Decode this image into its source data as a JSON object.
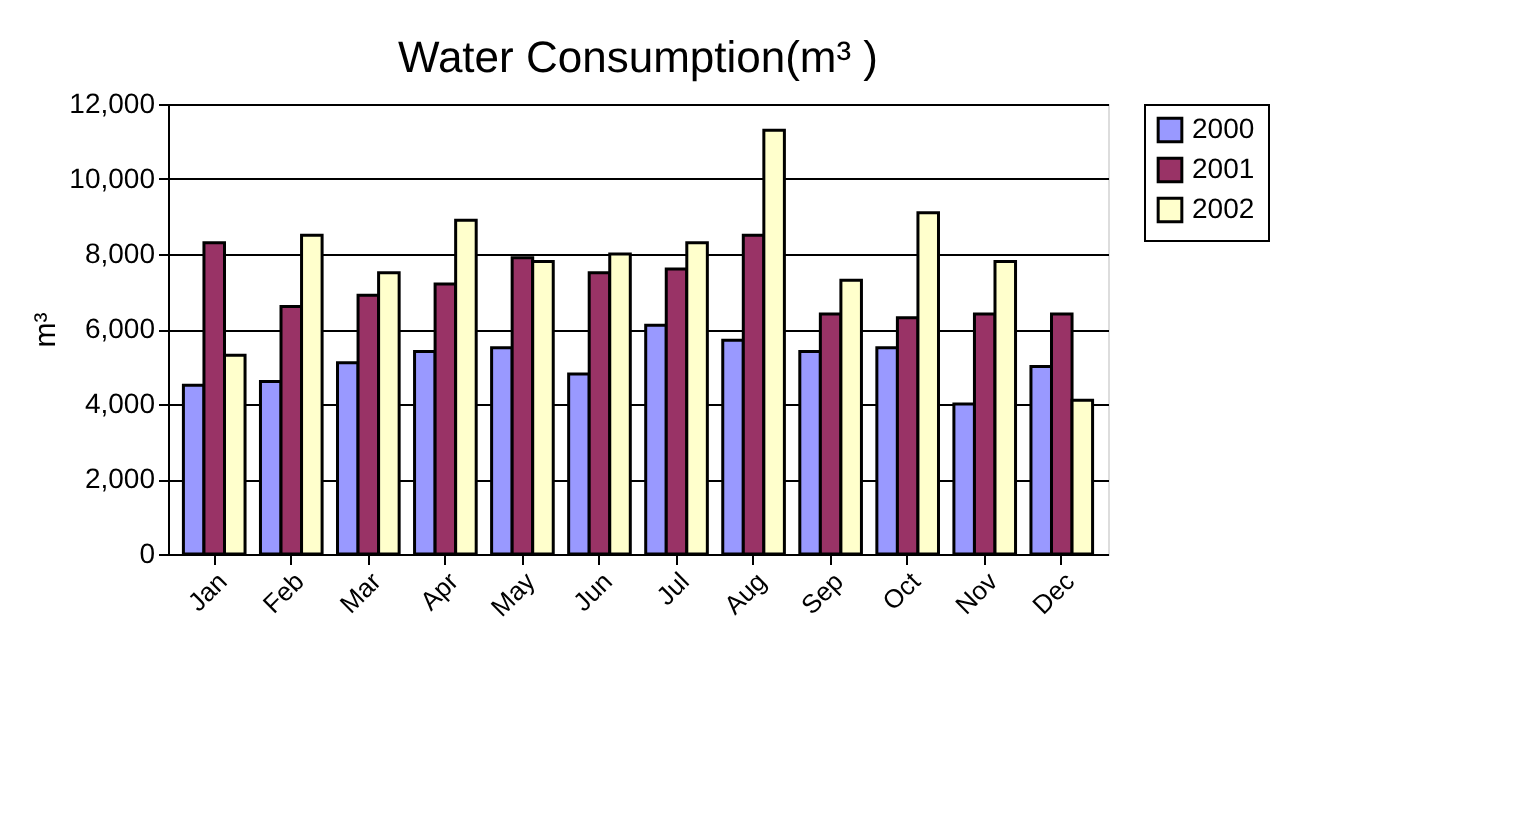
{
  "chart_data": {
    "type": "bar",
    "title": "Water Consumption(m³ )",
    "ylabel": "m³",
    "categories": [
      "Jan",
      "Feb",
      "Mar",
      "Apr",
      "May",
      "Jun",
      "Jul",
      "Aug",
      "Sep",
      "Oct",
      "Nov",
      "Dec"
    ],
    "series": [
      {
        "name": "2000",
        "color": "#9999ff",
        "values": [
          4500,
          4600,
          5100,
          5400,
          5500,
          4800,
          6100,
          5700,
          5400,
          5500,
          4000,
          5000
        ]
      },
      {
        "name": "2001",
        "color": "#993366",
        "values": [
          8300,
          6600,
          6900,
          7200,
          7900,
          7500,
          7600,
          8500,
          6400,
          6300,
          6400,
          6400
        ]
      },
      {
        "name": "2002",
        "color": "#ffffcc",
        "values": [
          5300,
          8500,
          7500,
          8900,
          7800,
          8000,
          8300,
          11300,
          7300,
          9100,
          7800,
          4100
        ]
      }
    ],
    "ylim": [
      0,
      12000
    ],
    "yticks": [
      {
        "value": 0,
        "label": "0"
      },
      {
        "value": 2000,
        "label": "2,000"
      },
      {
        "value": 4000,
        "label": "4,000"
      },
      {
        "value": 6000,
        "label": "6,000"
      },
      {
        "value": 8000,
        "label": "8,000"
      },
      {
        "value": 10000,
        "label": "10,000"
      },
      {
        "value": 12000,
        "label": "12,000"
      }
    ],
    "grid": "y",
    "legend": "right"
  }
}
